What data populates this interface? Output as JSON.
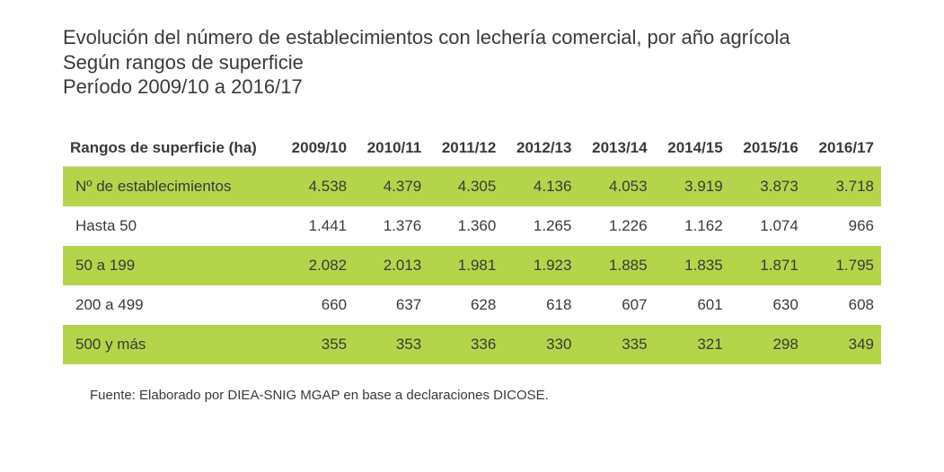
{
  "title": {
    "line1": "Evolución del número de establecimientos con lechería comercial, por año agrícola",
    "line2": "Según rangos de superficie",
    "line3": "Período 2009/10 a 2016/17"
  },
  "table": {
    "type": "table",
    "highlight_color": "#b4d54a",
    "background_color": "#ffffff",
    "text_color": "#3a3a3a",
    "header_border_color": "#d6d6d6",
    "font_size_body": 17,
    "font_size_title": 22,
    "columns": [
      "Rangos de superficie (ha)",
      "2009/10",
      "2010/11",
      "2011/12",
      "2012/13",
      "2013/14",
      "2014/15",
      "2015/16",
      "2016/17"
    ],
    "rows": [
      {
        "highlight": true,
        "cells": [
          "Nº de establecimientos",
          "4.538",
          "4.379",
          "4.305",
          "4.136",
          "4.053",
          "3.919",
          "3.873",
          "3.718"
        ]
      },
      {
        "highlight": false,
        "cells": [
          "Hasta 50",
          "1.441",
          "1.376",
          "1.360",
          "1.265",
          "1.226",
          "1.162",
          "1.074",
          "966"
        ]
      },
      {
        "highlight": true,
        "cells": [
          "50 a 199",
          "2.082",
          "2.013",
          "1.981",
          "1.923",
          "1.885",
          "1.835",
          "1.871",
          "1.795"
        ]
      },
      {
        "highlight": false,
        "cells": [
          "200 a 499",
          "660",
          "637",
          "628",
          "618",
          "607",
          "601",
          "630",
          "608"
        ]
      },
      {
        "highlight": true,
        "cells": [
          "500 y más",
          "355",
          "353",
          "336",
          "330",
          "335",
          "321",
          "298",
          "349"
        ]
      }
    ]
  },
  "footnote": "Fuente: Elaborado por DIEA-SNIG MGAP en base a declaraciones DICOSE."
}
